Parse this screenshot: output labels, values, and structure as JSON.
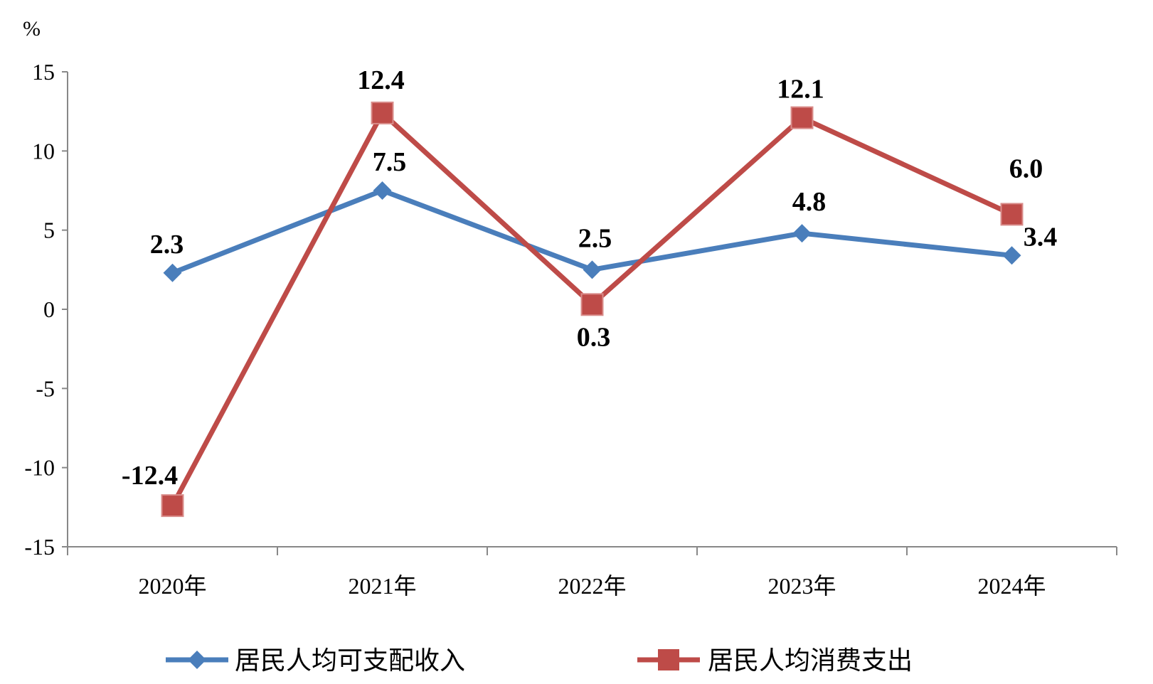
{
  "chart_data": {
    "type": "line",
    "title": "",
    "xlabel": "",
    "ylabel": "%",
    "categories": [
      "2020年",
      "2021年",
      "2022年",
      "2023年",
      "2024年"
    ],
    "ylim": [
      -15,
      15
    ],
    "yticks": [
      15,
      10,
      5,
      0,
      -5,
      -10,
      -15
    ],
    "grid": false,
    "legend_position": "bottom",
    "series": [
      {
        "name": "居民人均可支配收入",
        "values": [
          2.3,
          7.5,
          2.5,
          4.8,
          3.4
        ],
        "labels": [
          "2.3",
          "7.5",
          "2.5",
          "4.8",
          "3.4"
        ],
        "color": "#4a7ebb",
        "marker": "diamond"
      },
      {
        "name": "居民人均消费支出",
        "values": [
          -12.4,
          12.4,
          0.3,
          12.1,
          6.0
        ],
        "labels": [
          "-12.4",
          "12.4",
          "0.3",
          "12.1",
          "6.0"
        ],
        "color": "#be4b48",
        "marker": "square"
      }
    ]
  }
}
